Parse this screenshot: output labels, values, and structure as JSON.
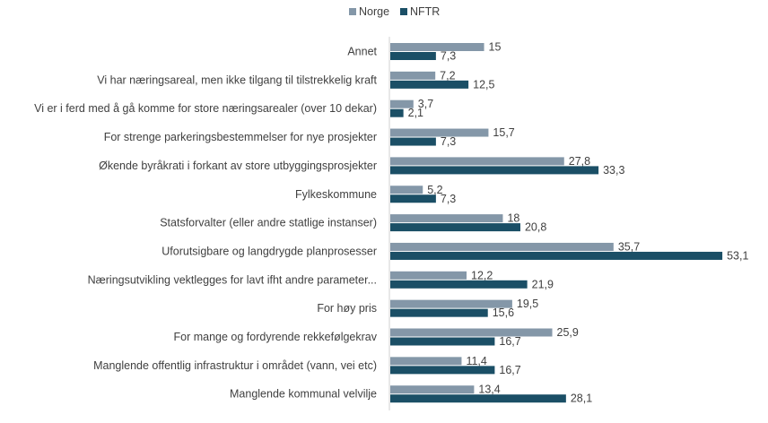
{
  "chart_data": {
    "type": "bar",
    "orientation": "horizontal",
    "title": "",
    "xlabel": "",
    "ylabel": "",
    "xlim": [
      0,
      55
    ],
    "grid": false,
    "legend_position": "top",
    "categories": [
      "Annet",
      "Vi har næringsareal, men ikke tilgang til tilstrekkelig kraft",
      "Vi er i ferd med å gå komme for store næringsarealer (over 10 dekar)",
      "For strenge parkeringsbestemmelser for nye prosjekter",
      "Økende byråkrati i forkant av store utbyggingsprosjekter",
      "Fylkeskommune",
      "Statsforvalter (eller andre statlige instanser)",
      "Uforutsigbare og langdrygde planprosesser",
      "Næringsutvikling vektlegges for lavt ifht andre parameter...",
      "For høy pris",
      "For mange og fordyrende rekkefølgekrav",
      "Manglende offentlig infrastruktur i området (vann, vei etc)",
      "Manglende kommunal velvilje"
    ],
    "series": [
      {
        "name": "Norge",
        "color": "#8497a8",
        "values": [
          15,
          7.2,
          3.7,
          15.7,
          27.8,
          5.2,
          18,
          35.7,
          12.2,
          19.5,
          25.9,
          11.4,
          13.4
        ],
        "labels": [
          "15",
          "7,2",
          "3,7",
          "15,7",
          "27,8",
          "5,2",
          "18",
          "35,7",
          "12,2",
          "19,5",
          "25,9",
          "11,4",
          "13,4"
        ]
      },
      {
        "name": "NFTR",
        "color": "#1b4f66",
        "values": [
          7.3,
          12.5,
          2.1,
          7.3,
          33.3,
          7.3,
          20.8,
          53.1,
          21.9,
          15.6,
          16.7,
          16.7,
          28.1
        ],
        "labels": [
          "7,3",
          "12,5",
          "2,1",
          "7,3",
          "33,3",
          "7,3",
          "20,8",
          "53,1",
          "21,9",
          "15,6",
          "16,7",
          "16,7",
          "28,1"
        ]
      }
    ]
  }
}
